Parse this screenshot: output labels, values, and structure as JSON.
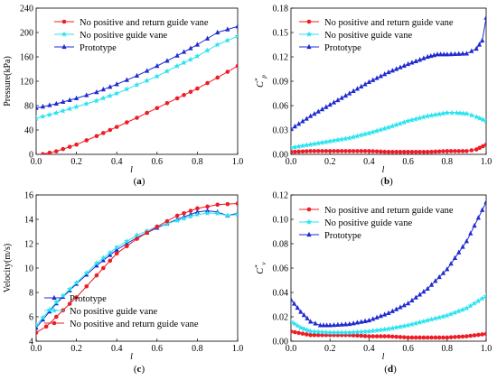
{
  "figure": {
    "panels": [
      {
        "caption_open": "(",
        "caption_letter": "a",
        "caption_close": ")"
      },
      {
        "caption_open": "(",
        "caption_letter": "b",
        "caption_close": ")"
      },
      {
        "caption_open": "(",
        "caption_letter": "c",
        "caption_close": ")"
      },
      {
        "caption_open": "(",
        "caption_letter": "d",
        "caption_close": ")"
      }
    ]
  },
  "colors": {
    "red": "#ee1c25",
    "cyan": "#2be3f0",
    "blue": "#1f2bd1"
  },
  "chart_data": [
    {
      "type": "line",
      "title": "",
      "xlabel": "l",
      "ylabel": "Pressure(kPa)",
      "xlim": [
        0.0,
        1.0
      ],
      "ylim": [
        0,
        240
      ],
      "xticks": [
        0.0,
        0.2,
        0.4,
        0.6,
        0.8,
        1.0
      ],
      "yticks": [
        0,
        40,
        80,
        120,
        160,
        200,
        240
      ],
      "xtick_labels": [
        "0.0",
        "0.2",
        "0.4",
        "0.6",
        "0.8",
        "1.0"
      ],
      "ytick_labels": [
        "0",
        "40",
        "80",
        "120",
        "160",
        "200",
        "240"
      ],
      "legend_position": "top-left",
      "series": [
        {
          "name": "No positive and return guide vane",
          "color": "#ee1c25",
          "marker": "circle",
          "x": [
            0,
            0.1,
            0.2,
            0.3,
            0.4,
            0.5,
            0.6,
            0.7,
            0.8,
            0.9,
            1.0
          ],
          "y": [
            -2,
            5,
            16,
            30,
            45,
            60,
            76,
            92,
            108,
            126,
            145
          ]
        },
        {
          "name": "No positive guide vane",
          "color": "#2be3f0",
          "marker": "star",
          "x": [
            0,
            0.1,
            0.2,
            0.3,
            0.4,
            0.5,
            0.6,
            0.7,
            0.8,
            0.9,
            1.0
          ],
          "y": [
            59,
            68,
            78,
            88,
            100,
            114,
            128,
            145,
            161,
            180,
            194
          ]
        },
        {
          "name": "Prototype",
          "color": "#1f2bd1",
          "marker": "triangle",
          "x": [
            0,
            0.1,
            0.2,
            0.3,
            0.4,
            0.5,
            0.6,
            0.7,
            0.8,
            0.9,
            1.0
          ],
          "y": [
            76,
            83,
            92,
            102,
            115,
            129,
            145,
            162,
            180,
            200,
            210
          ]
        }
      ]
    },
    {
      "type": "line",
      "title": "",
      "xlabel": "l",
      "ylabel": "C*p",
      "xlim": [
        0.0,
        1.0
      ],
      "ylim": [
        0.0,
        0.18
      ],
      "xticks": [
        0.0,
        0.2,
        0.4,
        0.6,
        0.8,
        1.0
      ],
      "yticks": [
        0.0,
        0.03,
        0.06,
        0.09,
        0.12,
        0.15,
        0.18
      ],
      "xtick_labels": [
        "0.0",
        "0.2",
        "0.4",
        "0.6",
        "0.8",
        "1.0"
      ],
      "ytick_labels": [
        "0.00",
        "0.03",
        "0.06",
        "0.09",
        "0.12",
        "0.15",
        "0.18"
      ],
      "legend_position": "top-left",
      "series": [
        {
          "name": "No positive  and return guide vane",
          "color": "#ee1c25",
          "marker": "circle",
          "x": [
            0,
            0.1,
            0.2,
            0.3,
            0.4,
            0.5,
            0.6,
            0.7,
            0.8,
            0.9,
            0.95,
            1.0
          ],
          "y": [
            0.003,
            0.004,
            0.004,
            0.004,
            0.004,
            0.003,
            0.003,
            0.003,
            0.004,
            0.004,
            0.006,
            0.012
          ]
        },
        {
          "name": "No positive  guide vane",
          "color": "#2be3f0",
          "marker": "star",
          "x": [
            0,
            0.1,
            0.2,
            0.3,
            0.4,
            0.5,
            0.6,
            0.7,
            0.8,
            0.85,
            0.9,
            0.95,
            1.0
          ],
          "y": [
            0.008,
            0.012,
            0.016,
            0.02,
            0.026,
            0.033,
            0.041,
            0.047,
            0.051,
            0.051,
            0.05,
            0.046,
            0.041
          ]
        },
        {
          "name": "Prototype",
          "color": "#1f2bd1",
          "marker": "triangle",
          "x": [
            0,
            0.1,
            0.2,
            0.3,
            0.4,
            0.5,
            0.6,
            0.7,
            0.75,
            0.8,
            0.9,
            0.95,
            0.98,
            1.0
          ],
          "y": [
            0.031,
            0.047,
            0.061,
            0.075,
            0.089,
            0.101,
            0.111,
            0.12,
            0.123,
            0.123,
            0.124,
            0.13,
            0.14,
            0.168
          ]
        }
      ]
    },
    {
      "type": "line",
      "title": "",
      "xlabel": "l",
      "ylabel": "Velocity(m/s)",
      "xlim": [
        0.0,
        1.0
      ],
      "ylim": [
        4,
        16
      ],
      "xticks": [
        0.0,
        0.2,
        0.4,
        0.6,
        0.8,
        1.0
      ],
      "yticks": [
        4,
        6,
        8,
        10,
        12,
        14,
        16
      ],
      "xtick_labels": [
        "0.0",
        "0.2",
        "0.4",
        "0.6",
        "0.8",
        "1.0"
      ],
      "ytick_labels": [
        "4",
        "6",
        "8",
        "10",
        "12",
        "14",
        "16"
      ],
      "legend_position": "bottom-right",
      "series": [
        {
          "name": "Prototype",
          "color": "#1f2bd1",
          "marker": "triangle",
          "x": [
            0,
            0.1,
            0.2,
            0.3,
            0.4,
            0.5,
            0.6,
            0.7,
            0.8,
            0.85,
            0.9,
            0.95,
            1.0
          ],
          "y": [
            5.1,
            7.1,
            8.7,
            10.2,
            11.5,
            12.5,
            13.3,
            14.0,
            14.6,
            14.7,
            14.6,
            14.3,
            14.5
          ]
        },
        {
          "name": "No positive guide vane",
          "color": "#2be3f0",
          "marker": "star",
          "x": [
            0,
            0.1,
            0.2,
            0.3,
            0.4,
            0.5,
            0.6,
            0.7,
            0.8,
            0.85,
            0.9,
            0.95,
            1.0
          ],
          "y": [
            5.3,
            7.2,
            8.8,
            10.4,
            11.7,
            12.7,
            13.4,
            13.9,
            14.4,
            14.5,
            14.5,
            14.3,
            14.4
          ]
        },
        {
          "name": "No positive and return guide vane",
          "color": "#ee1c25",
          "marker": "circle",
          "x": [
            0,
            0.05,
            0.1,
            0.2,
            0.3,
            0.4,
            0.5,
            0.6,
            0.7,
            0.8,
            0.9,
            1.0
          ],
          "y": [
            4.7,
            5.2,
            6.0,
            7.6,
            9.4,
            11.2,
            12.4,
            13.4,
            14.3,
            14.9,
            15.2,
            15.3
          ]
        }
      ]
    },
    {
      "type": "line",
      "title": "",
      "xlabel": "l",
      "ylabel": "C*v",
      "xlim": [
        0.0,
        1.0
      ],
      "ylim": [
        0.0,
        0.12
      ],
      "xticks": [
        0.0,
        0.2,
        0.4,
        0.6,
        0.8,
        1.0
      ],
      "yticks": [
        0.0,
        0.02,
        0.04,
        0.06,
        0.08,
        0.1,
        0.12
      ],
      "xtick_labels": [
        "0.0",
        "0.2",
        "0.4",
        "0.6",
        "0.8",
        "1.0"
      ],
      "ytick_labels": [
        "0.00",
        "0.02",
        "0.04",
        "0.06",
        "0.08",
        "0.10",
        "0.12"
      ],
      "legend_position": "top-left",
      "series": [
        {
          "name": "No positive  and return guide vane",
          "color": "#ee1c25",
          "marker": "circle",
          "x": [
            0,
            0.1,
            0.2,
            0.3,
            0.4,
            0.5,
            0.6,
            0.7,
            0.8,
            0.9,
            1.0
          ],
          "y": [
            0.008,
            0.005,
            0.005,
            0.005,
            0.004,
            0.004,
            0.003,
            0.003,
            0.003,
            0.004,
            0.006
          ]
        },
        {
          "name": "No positive  guide vane",
          "color": "#2be3f0",
          "marker": "star",
          "x": [
            0,
            0.05,
            0.1,
            0.2,
            0.3,
            0.4,
            0.5,
            0.6,
            0.7,
            0.8,
            0.9,
            1.0
          ],
          "y": [
            0.016,
            0.011,
            0.008,
            0.007,
            0.007,
            0.008,
            0.01,
            0.013,
            0.017,
            0.021,
            0.027,
            0.037
          ]
        },
        {
          "name": "Prototype",
          "color": "#1f2bd1",
          "marker": "triangle",
          "x": [
            0,
            0.05,
            0.1,
            0.15,
            0.2,
            0.3,
            0.4,
            0.5,
            0.6,
            0.7,
            0.8,
            0.9,
            1.0
          ],
          "y": [
            0.034,
            0.024,
            0.016,
            0.013,
            0.013,
            0.014,
            0.017,
            0.023,
            0.031,
            0.043,
            0.059,
            0.082,
            0.114
          ]
        }
      ]
    }
  ]
}
